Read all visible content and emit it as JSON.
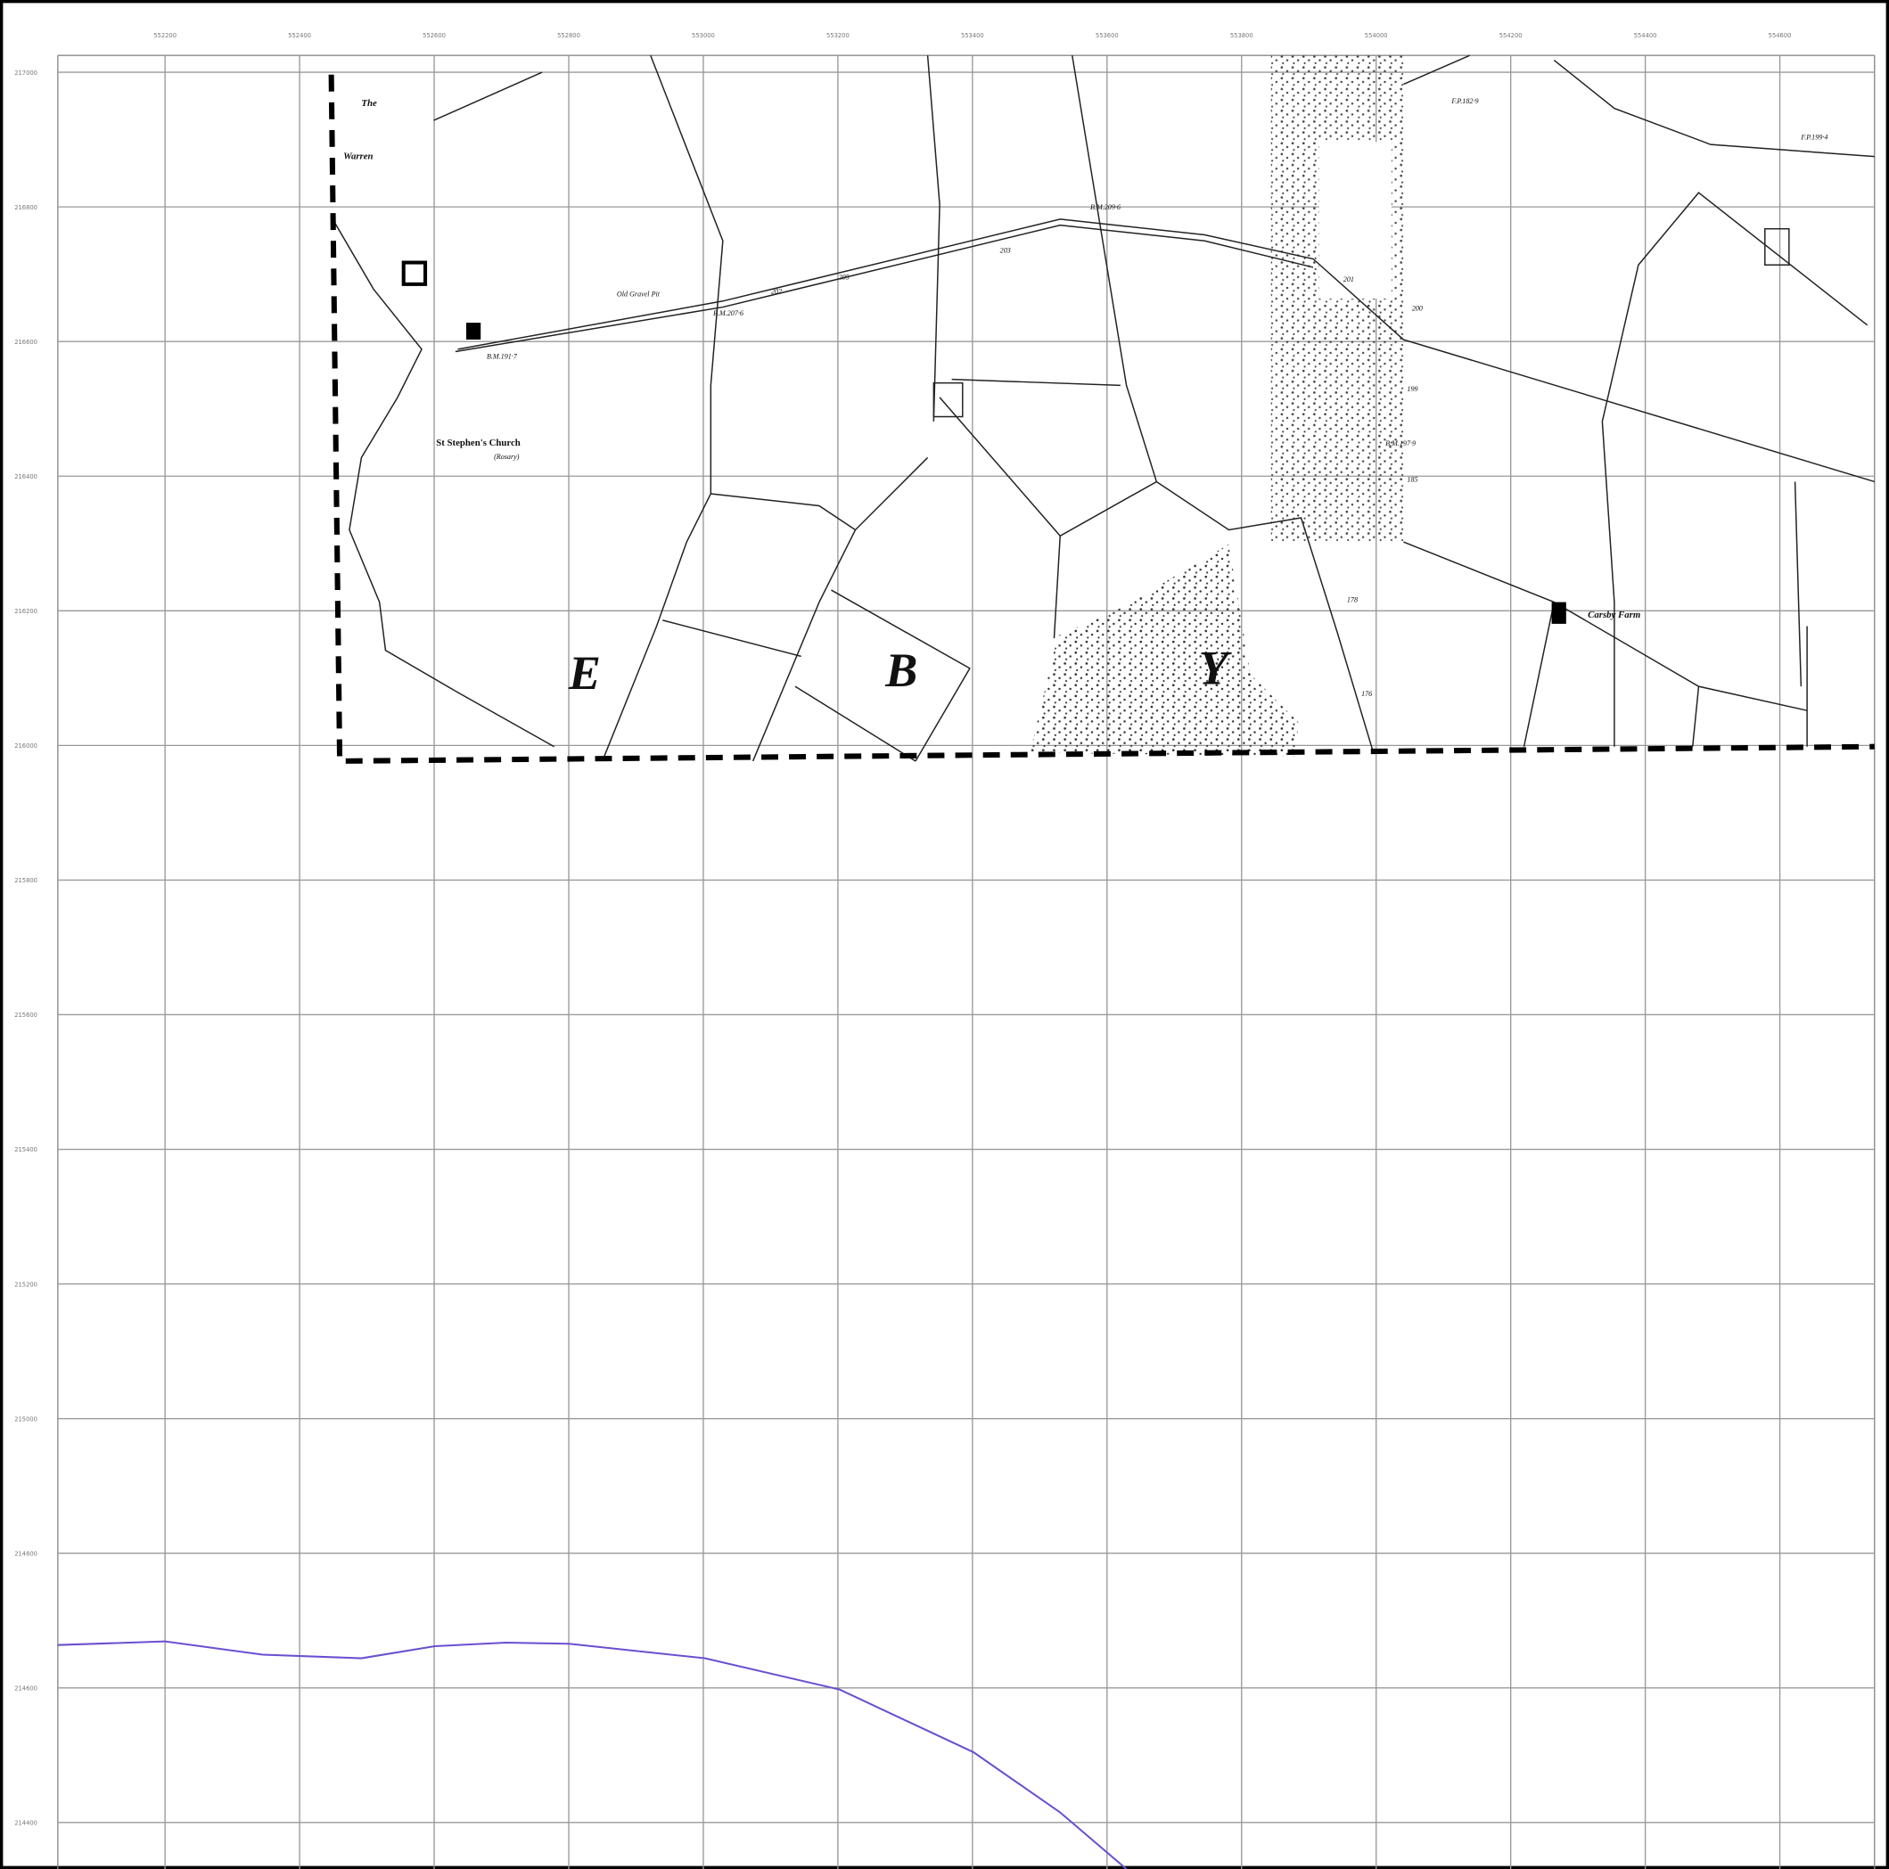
{
  "grid": {
    "x_labels": [
      "552200",
      "552400",
      "552600",
      "552800",
      "553000",
      "553200",
      "553400",
      "553600",
      "553800",
      "554000",
      "554200",
      "554400",
      "554600"
    ],
    "y_labels": [
      "217000",
      "216800",
      "216600",
      "216400",
      "216200",
      "216000",
      "215800",
      "215600",
      "215400",
      "215200",
      "215000",
      "214800",
      "214600",
      "214400"
    ]
  },
  "map_labels": {
    "the": "The",
    "warren": "Warren",
    "church": "St Stephen's Church",
    "rosary": "(Rosary)",
    "farm": "Carsby Farm",
    "gravel": "Old Gravel Pit",
    "letter_e": "E",
    "letter_b": "B",
    "letter_y": "Y",
    "bm1": "B.M.207·6",
    "bm2": "B.M.191·7",
    "bm3": "B.M.209·6",
    "bm4": "B.M.197·9",
    "fp1": "F.P.182·9",
    "fp2": "F.P.199·4",
    "spot1": "203",
    "spot2": "205",
    "spot3": "202",
    "spot4": "201",
    "spot5": "200",
    "spot6": "199",
    "spot7": "185",
    "spot8": "178",
    "spot9": "176"
  }
}
